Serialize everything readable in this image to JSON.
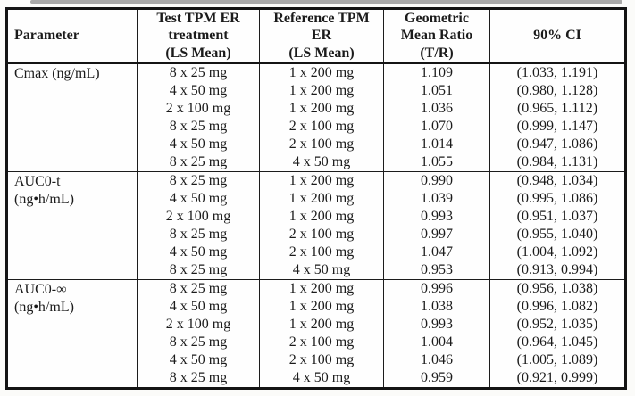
{
  "header": {
    "parameter": "Parameter",
    "test": "Test TPM ER\ntreatment\n(LS Mean)",
    "reference": "Reference TPM\nER\n(LS Mean)",
    "ratio": "Geometric\nMean Ratio\n(T/R)",
    "ci": "90% CI"
  },
  "sections": [
    {
      "parameter": "Cmax (ng/mL)",
      "rows": [
        {
          "test": "8 x 25 mg",
          "reference": "1 x 200 mg",
          "ratio": "1.109",
          "ci": "(1.033, 1.191)"
        },
        {
          "test": "4 x 50 mg",
          "reference": "1 x 200 mg",
          "ratio": "1.051",
          "ci": "(0.980, 1.128)"
        },
        {
          "test": "2 x 100 mg",
          "reference": "1 x 200 mg",
          "ratio": "1.036",
          "ci": "(0.965, 1.112)"
        },
        {
          "test": "8 x 25 mg",
          "reference": "2 x 100 mg",
          "ratio": "1.070",
          "ci": "(0.999, 1.147)"
        },
        {
          "test": "4 x 50 mg",
          "reference": "2 x 100 mg",
          "ratio": "1.014",
          "ci": "(0.947, 1.086)"
        },
        {
          "test": "8 x 25 mg",
          "reference": "4 x 50 mg",
          "ratio": "1.055",
          "ci": "(0.984, 1.131)"
        }
      ]
    },
    {
      "parameter": "AUC0-t\n(ng•h/mL)",
      "rows": [
        {
          "test": "8 x 25 mg",
          "reference": "1 x 200 mg",
          "ratio": "0.990",
          "ci": "(0.948, 1.034)"
        },
        {
          "test": "4 x 50 mg",
          "reference": "1 x 200 mg",
          "ratio": "1.039",
          "ci": "(0.995, 1.086)"
        },
        {
          "test": "2 x 100 mg",
          "reference": "1 x 200 mg",
          "ratio": "0.993",
          "ci": "(0.951, 1.037)"
        },
        {
          "test": "8 x 25 mg",
          "reference": "2 x 100 mg",
          "ratio": "0.997",
          "ci": "(0.955, 1.040)"
        },
        {
          "test": "4 x 50 mg",
          "reference": "2 x 100 mg",
          "ratio": "1.047",
          "ci": "(1.004, 1.092)"
        },
        {
          "test": "8 x 25 mg",
          "reference": "4 x 50 mg",
          "ratio": "0.953",
          "ci": "(0.913, 0.994)"
        }
      ]
    },
    {
      "parameter": "AUC0-∞\n(ng•h/mL)",
      "rows": [
        {
          "test": "8 x 25 mg",
          "reference": "1 x 200 mg",
          "ratio": "0.996",
          "ci": "(0.956, 1.038)"
        },
        {
          "test": "4 x 50 mg",
          "reference": "1 x 200 mg",
          "ratio": "1.038",
          "ci": "(0.996, 1.082)"
        },
        {
          "test": "2 x 100 mg",
          "reference": "1 x 200 mg",
          "ratio": "0.993",
          "ci": "(0.952, 1.035)"
        },
        {
          "test": "8 x 25 mg",
          "reference": "2 x 100 mg",
          "ratio": "1.004",
          "ci": "(0.964, 1.045)"
        },
        {
          "test": "4 x 50 mg",
          "reference": "2 x 100 mg",
          "ratio": "1.046",
          "ci": "(1.005, 1.089)"
        },
        {
          "test": "8 x 25 mg",
          "reference": "4 x 50 mg",
          "ratio": "0.959",
          "ci": "(0.921, 0.999)"
        }
      ]
    }
  ]
}
